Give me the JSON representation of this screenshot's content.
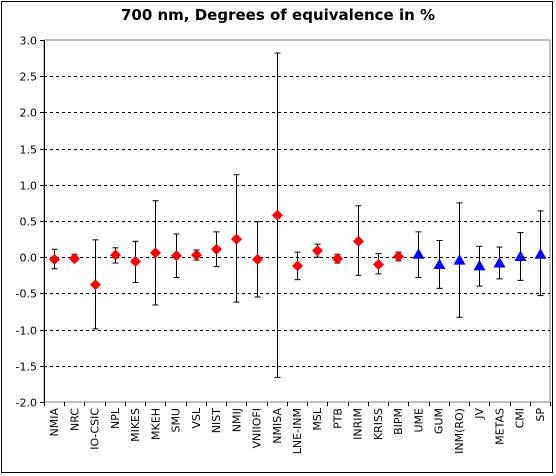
{
  "chart_data": {
    "type": "scatter",
    "title": "700 nm, Degrees of equivalence in %",
    "xlabel": "",
    "ylabel": "",
    "ylim": [
      -2.0,
      3.0
    ],
    "yticks": [
      "3.0",
      "2.5",
      "2.0",
      "1.5",
      "1.0",
      "0.5",
      "0.0",
      "-0.5",
      "-1.0",
      "-1.5",
      "-2.0"
    ],
    "grid": "horizontal-dashed",
    "legend": "none",
    "categories": [
      "NMIA",
      "NRC",
      "IO-CSIC",
      "NPL",
      "MIKES",
      "MKEH",
      "SMU",
      "VSL",
      "NIST",
      "NMIJ",
      "VNIIOFI",
      "NMISA",
      "LNE-INM",
      "MSL",
      "PTB",
      "INRIM",
      "KRISS",
      "BIPM",
      "UME",
      "GUM",
      "INM(RO)",
      "JV",
      "METAS",
      "CMI",
      "SP"
    ],
    "points": [
      {
        "label": "NMIA",
        "value": -0.03,
        "low": -0.16,
        "high": 0.11,
        "marker": "diamond",
        "color": "#ff0000"
      },
      {
        "label": "NRC",
        "value": -0.02,
        "low": -0.06,
        "high": 0.04,
        "marker": "diamond",
        "color": "#ff0000"
      },
      {
        "label": "IO-CSIC",
        "value": -0.38,
        "low": -0.99,
        "high": 0.24,
        "marker": "diamond",
        "color": "#ff0000"
      },
      {
        "label": "NPL",
        "value": 0.03,
        "low": -0.08,
        "high": 0.13,
        "marker": "diamond",
        "color": "#ff0000"
      },
      {
        "label": "MIKES",
        "value": -0.06,
        "low": -0.35,
        "high": 0.22,
        "marker": "diamond",
        "color": "#ff0000"
      },
      {
        "label": "MKEH",
        "value": 0.06,
        "low": -0.66,
        "high": 0.78,
        "marker": "diamond",
        "color": "#ff0000"
      },
      {
        "label": "SMU",
        "value": 0.02,
        "low": -0.28,
        "high": 0.32,
        "marker": "diamond",
        "color": "#ff0000"
      },
      {
        "label": "VSL",
        "value": 0.03,
        "low": -0.04,
        "high": 0.1,
        "marker": "diamond",
        "color": "#ff0000"
      },
      {
        "label": "NIST",
        "value": 0.11,
        "low": -0.13,
        "high": 0.35,
        "marker": "diamond",
        "color": "#ff0000"
      },
      {
        "label": "NMIJ",
        "value": 0.25,
        "low": -0.62,
        "high": 1.14,
        "marker": "diamond",
        "color": "#ff0000"
      },
      {
        "label": "VNIIOFI",
        "value": -0.03,
        "low": -0.55,
        "high": 0.49,
        "marker": "diamond",
        "color": "#ff0000"
      },
      {
        "label": "NMISA",
        "value": 0.58,
        "low": -1.66,
        "high": 2.82,
        "marker": "diamond",
        "color": "#ff0000"
      },
      {
        "label": "LNE-INM",
        "value": -0.12,
        "low": -0.31,
        "high": 0.07,
        "marker": "diamond",
        "color": "#ff0000"
      },
      {
        "label": "MSL",
        "value": 0.09,
        "low": 0.0,
        "high": 0.18,
        "marker": "diamond",
        "color": "#ff0000"
      },
      {
        "label": "PTB",
        "value": -0.02,
        "low": -0.08,
        "high": 0.04,
        "marker": "diamond",
        "color": "#ff0000"
      },
      {
        "label": "INRIM",
        "value": 0.22,
        "low": -0.25,
        "high": 0.71,
        "marker": "diamond",
        "color": "#ff0000"
      },
      {
        "label": "KRISS",
        "value": -0.1,
        "low": -0.23,
        "high": 0.05,
        "marker": "diamond",
        "color": "#ff0000"
      },
      {
        "label": "BIPM",
        "value": 0.01,
        "low": -0.05,
        "high": 0.07,
        "marker": "diamond",
        "color": "#ff0000"
      },
      {
        "label": "UME",
        "value": 0.04,
        "low": -0.28,
        "high": 0.35,
        "marker": "triangle",
        "color": "#0000ff"
      },
      {
        "label": "GUM",
        "value": -0.1,
        "low": -0.43,
        "high": 0.23,
        "marker": "triangle",
        "color": "#0000ff"
      },
      {
        "label": "INM(RO)",
        "value": -0.04,
        "low": -0.83,
        "high": 0.75,
        "marker": "triangle",
        "color": "#0000ff"
      },
      {
        "label": "JV",
        "value": -0.12,
        "low": -0.4,
        "high": 0.15,
        "marker": "triangle",
        "color": "#0000ff"
      },
      {
        "label": "METAS",
        "value": -0.08,
        "low": -0.3,
        "high": 0.14,
        "marker": "triangle",
        "color": "#0000ff"
      },
      {
        "label": "CMI",
        "value": 0.01,
        "low": -0.32,
        "high": 0.34,
        "marker": "triangle",
        "color": "#0000ff"
      },
      {
        "label": "SP",
        "value": 0.04,
        "low": -0.53,
        "high": 0.64,
        "marker": "triangle",
        "color": "#0000ff"
      }
    ]
  }
}
